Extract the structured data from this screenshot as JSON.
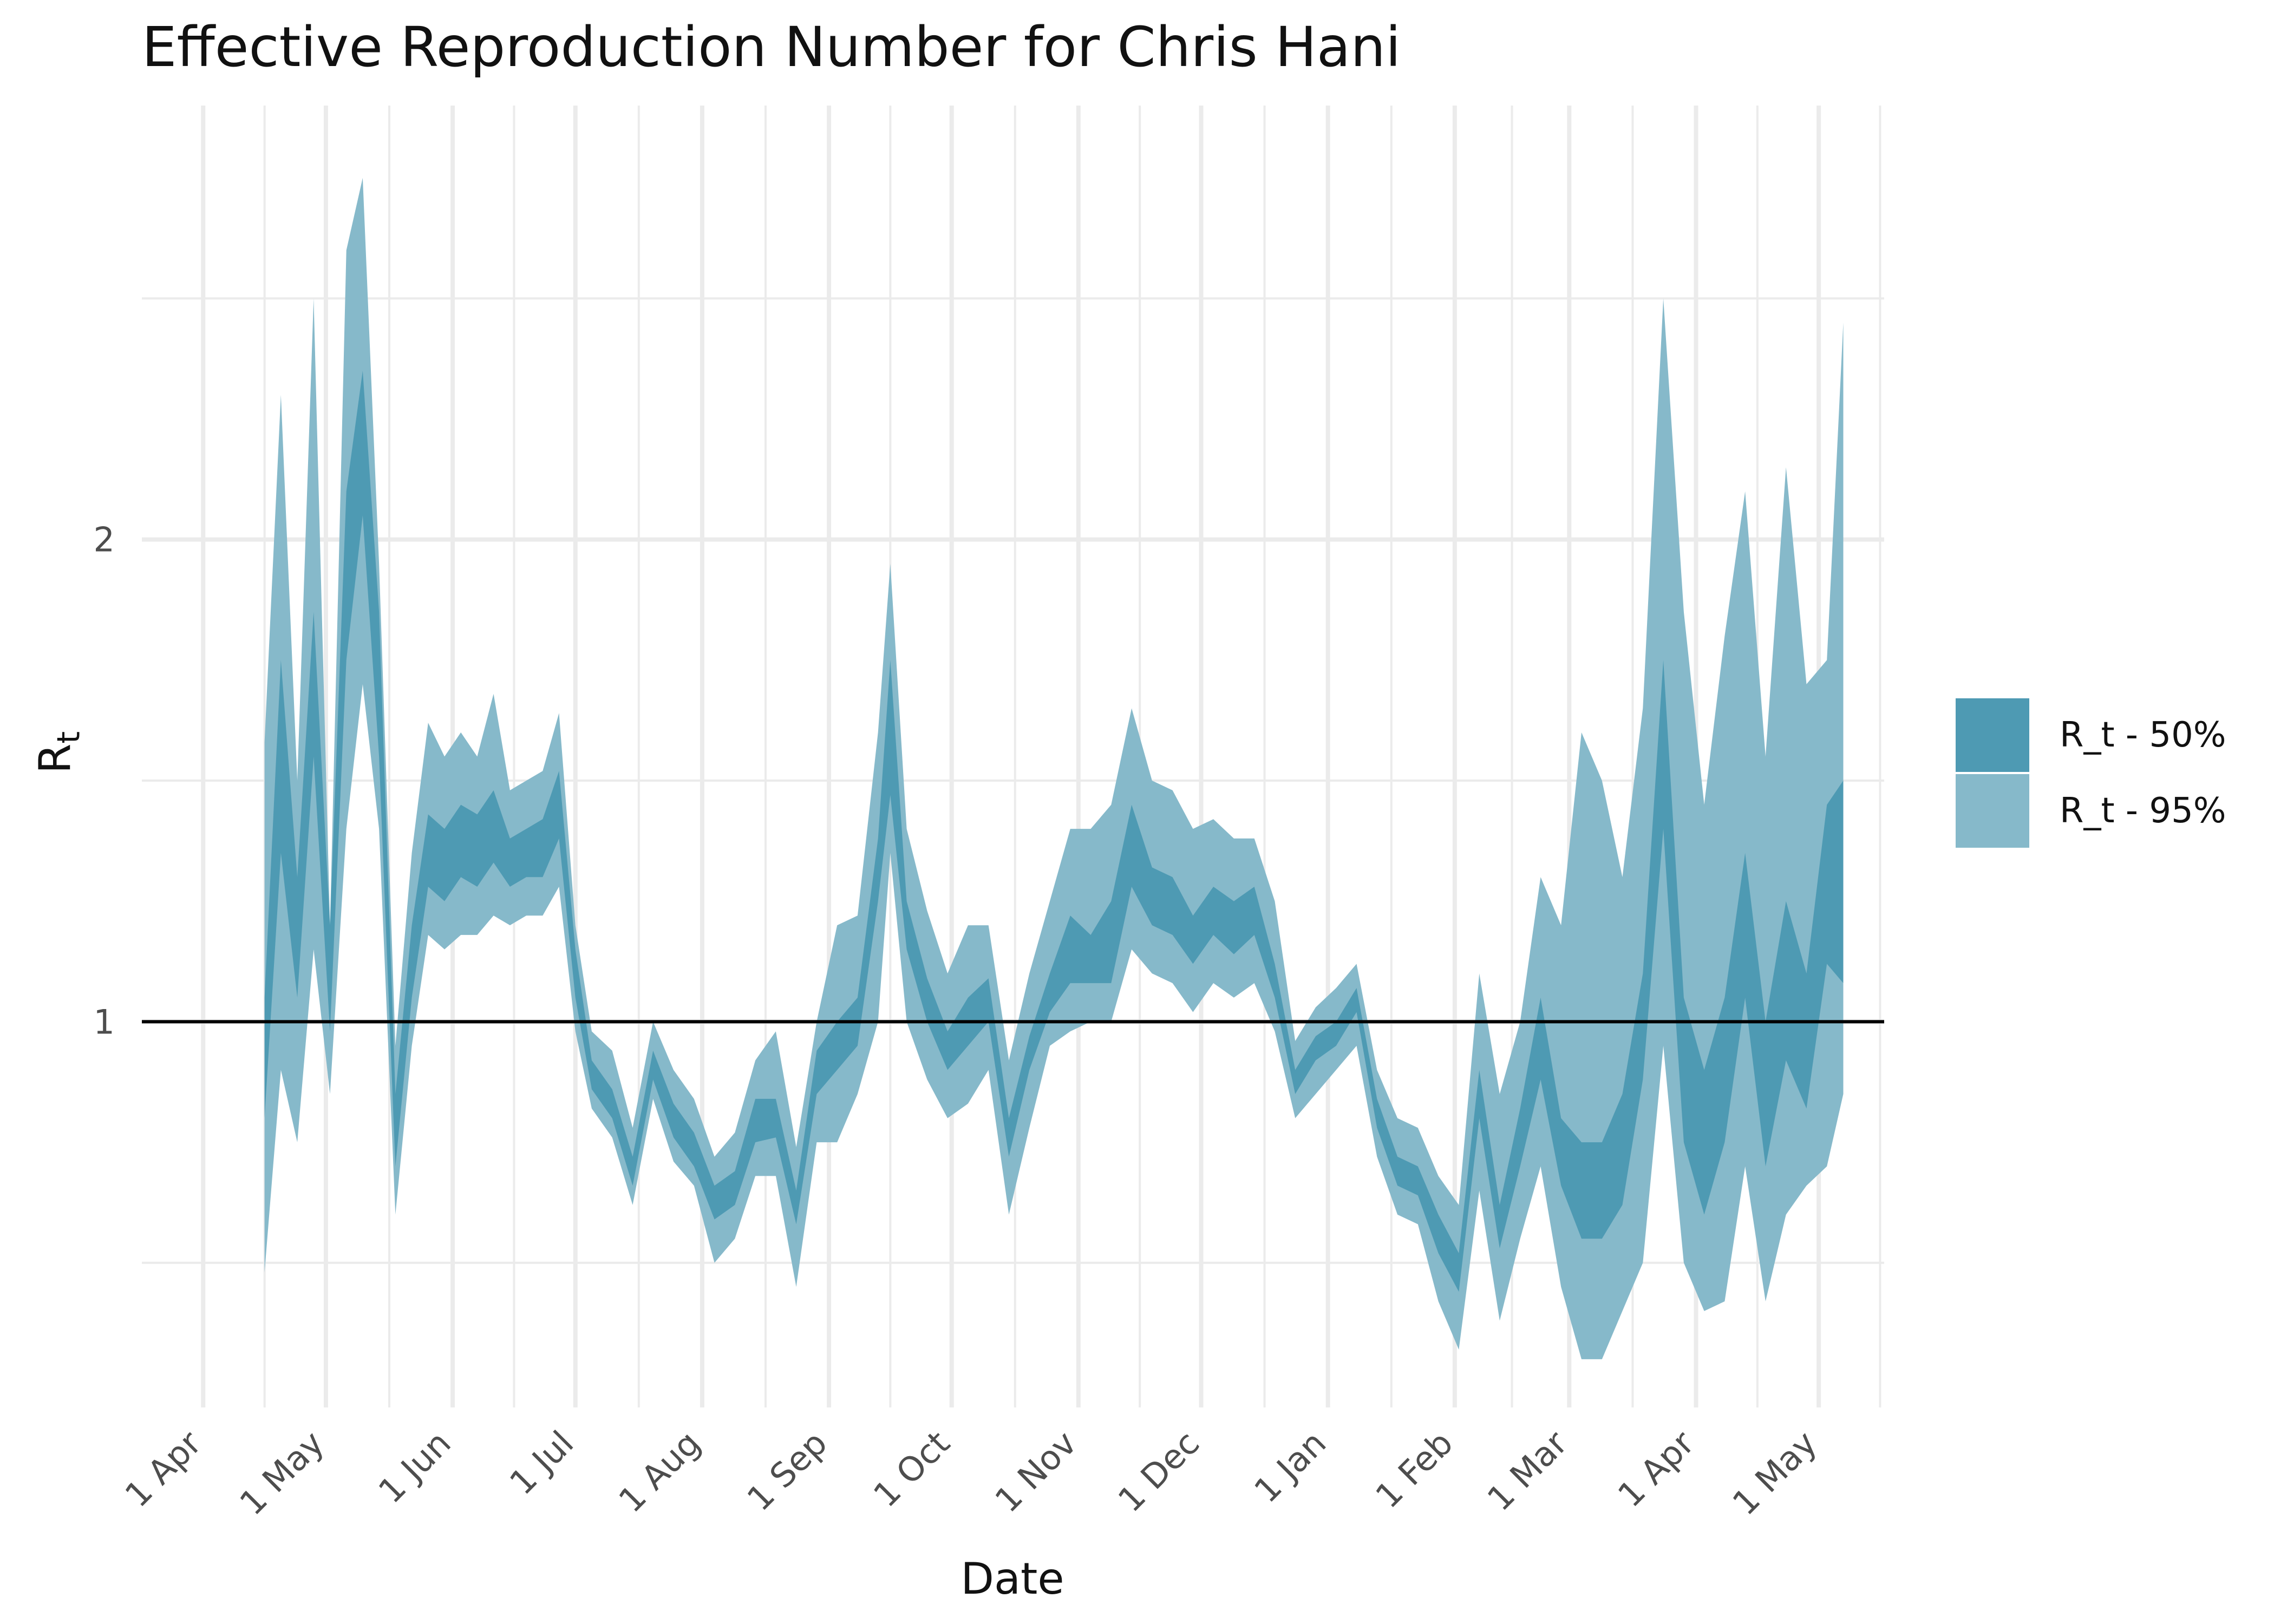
{
  "chart_data": {
    "type": "area",
    "title": "Effective Reproduction Number for Chris Hani",
    "xlabel": "Date",
    "ylabel": "R",
    "ylabel_sub": "t",
    "x_tick_labels": [
      "1 Apr",
      "1 May",
      "1 Jun",
      "1 Jul",
      "1 Aug",
      "1 Sep",
      "1 Oct",
      "1 Nov",
      "1 Dec",
      "1 Jan",
      "1 Feb",
      "1 Mar",
      "1 Apr",
      "1 May"
    ],
    "x_tick_dates": [
      "2020-04-01",
      "2020-05-01",
      "2020-06-01",
      "2020-07-01",
      "2020-08-01",
      "2020-09-01",
      "2020-10-01",
      "2020-11-01",
      "2020-12-01",
      "2021-01-01",
      "2021-02-01",
      "2021-03-01",
      "2021-04-01",
      "2021-05-01"
    ],
    "xlim": [
      "2020-03-17",
      "2021-05-17"
    ],
    "y_ticks": [
      1,
      2
    ],
    "ylim": [
      0.2,
      2.9
    ],
    "reference_line": 1,
    "grid": true,
    "legend_position": "right",
    "colors": {
      "band50": "#4e9ab3",
      "band95": "#86b9ca",
      "reference": "#000000",
      "grid": "#ebebeb"
    },
    "series": [
      {
        "name": "R_t - 50%",
        "x": [
          "2020-04-16",
          "2020-04-20",
          "2020-04-24",
          "2020-04-28",
          "2020-05-02",
          "2020-05-06",
          "2020-05-10",
          "2020-05-14",
          "2020-05-18",
          "2020-05-22",
          "2020-05-26",
          "2020-05-30",
          "2020-06-03",
          "2020-06-07",
          "2020-06-11",
          "2020-06-15",
          "2020-06-19",
          "2020-06-23",
          "2020-06-27",
          "2020-07-01",
          "2020-07-05",
          "2020-07-10",
          "2020-07-15",
          "2020-07-20",
          "2020-07-25",
          "2020-07-30",
          "2020-08-04",
          "2020-08-09",
          "2020-08-14",
          "2020-08-19",
          "2020-08-24",
          "2020-08-29",
          "2020-09-03",
          "2020-09-08",
          "2020-09-13",
          "2020-09-16",
          "2020-09-20",
          "2020-09-25",
          "2020-09-30",
          "2020-10-05",
          "2020-10-10",
          "2020-10-15",
          "2020-10-20",
          "2020-10-25",
          "2020-10-30",
          "2020-11-04",
          "2020-11-09",
          "2020-11-14",
          "2020-11-19",
          "2020-11-24",
          "2020-11-29",
          "2020-12-04",
          "2020-12-09",
          "2020-12-14",
          "2020-12-19",
          "2020-12-24",
          "2020-12-29",
          "2021-01-03",
          "2021-01-08",
          "2021-01-13",
          "2021-01-18",
          "2021-01-23",
          "2021-01-28",
          "2021-02-02",
          "2021-02-07",
          "2021-02-12",
          "2021-02-17",
          "2021-02-22",
          "2021-02-27",
          "2021-03-04",
          "2021-03-09",
          "2021-03-14",
          "2021-03-19",
          "2021-03-24",
          "2021-03-29",
          "2021-04-03",
          "2021-04-08",
          "2021-04-13",
          "2021-04-18",
          "2021-04-23",
          "2021-04-28",
          "2021-05-03",
          "2021-05-07"
        ],
        "lower": [
          0.8,
          1.35,
          1.05,
          1.55,
          0.98,
          1.75,
          2.05,
          1.55,
          0.7,
          1.05,
          1.28,
          1.25,
          1.3,
          1.28,
          1.33,
          1.28,
          1.3,
          1.3,
          1.38,
          1.05,
          0.86,
          0.8,
          0.66,
          0.88,
          0.76,
          0.7,
          0.59,
          0.62,
          0.75,
          0.76,
          0.58,
          0.85,
          0.9,
          0.95,
          1.25,
          1.47,
          1.15,
          1.0,
          0.9,
          0.95,
          1.0,
          0.72,
          0.9,
          1.02,
          1.08,
          1.08,
          1.08,
          1.28,
          1.2,
          1.18,
          1.12,
          1.18,
          1.14,
          1.18,
          1.05,
          0.85,
          0.92,
          0.95,
          1.02,
          0.78,
          0.66,
          0.64,
          0.52,
          0.44,
          0.8,
          0.53,
          0.7,
          0.88,
          0.66,
          0.55,
          0.55,
          0.62,
          0.88,
          1.4,
          0.75,
          0.6,
          0.75,
          1.05,
          0.7,
          0.92,
          0.82,
          1.12,
          1.08
        ],
        "upper": [
          1.05,
          1.75,
          1.3,
          1.85,
          1.2,
          2.1,
          2.35,
          1.85,
          0.85,
          1.2,
          1.43,
          1.4,
          1.45,
          1.43,
          1.48,
          1.38,
          1.4,
          1.42,
          1.52,
          1.15,
          0.92,
          0.86,
          0.72,
          0.94,
          0.83,
          0.77,
          0.66,
          0.69,
          0.84,
          0.84,
          0.65,
          0.94,
          1.0,
          1.05,
          1.38,
          1.75,
          1.25,
          1.09,
          0.98,
          1.05,
          1.09,
          0.8,
          0.97,
          1.1,
          1.22,
          1.18,
          1.25,
          1.45,
          1.32,
          1.3,
          1.22,
          1.28,
          1.25,
          1.28,
          1.12,
          0.9,
          0.97,
          1.0,
          1.07,
          0.84,
          0.72,
          0.7,
          0.6,
          0.52,
          0.9,
          0.62,
          0.82,
          1.05,
          0.8,
          0.75,
          0.75,
          0.85,
          1.1,
          1.75,
          1.05,
          0.9,
          1.05,
          1.35,
          1.0,
          1.25,
          1.1,
          1.45,
          1.5
        ]
      },
      {
        "name": "R_t - 95%",
        "x": [
          "2020-04-16",
          "2020-04-20",
          "2020-04-24",
          "2020-04-28",
          "2020-05-02",
          "2020-05-06",
          "2020-05-10",
          "2020-05-14",
          "2020-05-18",
          "2020-05-22",
          "2020-05-26",
          "2020-05-30",
          "2020-06-03",
          "2020-06-07",
          "2020-06-11",
          "2020-06-15",
          "2020-06-19",
          "2020-06-23",
          "2020-06-27",
          "2020-07-01",
          "2020-07-05",
          "2020-07-10",
          "2020-07-15",
          "2020-07-20",
          "2020-07-25",
          "2020-07-30",
          "2020-08-04",
          "2020-08-09",
          "2020-08-14",
          "2020-08-19",
          "2020-08-24",
          "2020-08-29",
          "2020-09-03",
          "2020-09-08",
          "2020-09-13",
          "2020-09-16",
          "2020-09-20",
          "2020-09-25",
          "2020-09-30",
          "2020-10-05",
          "2020-10-10",
          "2020-10-15",
          "2020-10-20",
          "2020-10-25",
          "2020-10-30",
          "2020-11-04",
          "2020-11-09",
          "2020-11-14",
          "2020-11-19",
          "2020-11-24",
          "2020-11-29",
          "2020-12-04",
          "2020-12-09",
          "2020-12-14",
          "2020-12-19",
          "2020-12-24",
          "2020-12-29",
          "2021-01-03",
          "2021-01-08",
          "2021-01-13",
          "2021-01-18",
          "2021-01-23",
          "2021-01-28",
          "2021-02-02",
          "2021-02-07",
          "2021-02-12",
          "2021-02-17",
          "2021-02-22",
          "2021-02-27",
          "2021-03-04",
          "2021-03-09",
          "2021-03-14",
          "2021-03-19",
          "2021-03-24",
          "2021-03-29",
          "2021-04-03",
          "2021-04-08",
          "2021-04-13",
          "2021-04-18",
          "2021-04-23",
          "2021-04-28",
          "2021-05-03",
          "2021-05-07"
        ],
        "lower": [
          0.48,
          0.9,
          0.75,
          1.15,
          0.85,
          1.4,
          1.7,
          1.4,
          0.6,
          0.95,
          1.18,
          1.15,
          1.18,
          1.18,
          1.22,
          1.2,
          1.22,
          1.22,
          1.28,
          0.98,
          0.82,
          0.76,
          0.62,
          0.84,
          0.71,
          0.66,
          0.5,
          0.55,
          0.68,
          0.68,
          0.45,
          0.75,
          0.75,
          0.85,
          1.0,
          1.35,
          1.0,
          0.88,
          0.8,
          0.83,
          0.9,
          0.6,
          0.78,
          0.95,
          0.98,
          1.0,
          1.0,
          1.15,
          1.1,
          1.08,
          1.02,
          1.08,
          1.05,
          1.08,
          0.98,
          0.8,
          0.85,
          0.9,
          0.95,
          0.72,
          0.6,
          0.58,
          0.42,
          0.32,
          0.65,
          0.38,
          0.55,
          0.7,
          0.45,
          0.3,
          0.3,
          0.4,
          0.5,
          0.95,
          0.5,
          0.4,
          0.42,
          0.7,
          0.42,
          0.6,
          0.66,
          0.7,
          0.85
        ],
        "upper": [
          1.58,
          2.3,
          1.5,
          2.5,
          1.2,
          2.6,
          2.75,
          1.95,
          0.95,
          1.35,
          1.62,
          1.55,
          1.6,
          1.55,
          1.68,
          1.48,
          1.5,
          1.52,
          1.64,
          1.2,
          0.98,
          0.94,
          0.78,
          1.0,
          0.9,
          0.84,
          0.72,
          0.77,
          0.92,
          0.98,
          0.74,
          1.0,
          1.2,
          1.22,
          1.6,
          1.95,
          1.4,
          1.23,
          1.1,
          1.2,
          1.2,
          0.92,
          1.1,
          1.25,
          1.4,
          1.4,
          1.45,
          1.65,
          1.5,
          1.48,
          1.4,
          1.42,
          1.38,
          1.38,
          1.25,
          0.96,
          1.03,
          1.07,
          1.12,
          0.9,
          0.8,
          0.78,
          0.68,
          0.62,
          1.1,
          0.85,
          1.0,
          1.3,
          1.2,
          1.6,
          1.5,
          1.3,
          1.65,
          2.5,
          1.85,
          1.45,
          1.8,
          2.1,
          1.55,
          2.15,
          1.7,
          1.75,
          2.45
        ]
      }
    ]
  }
}
